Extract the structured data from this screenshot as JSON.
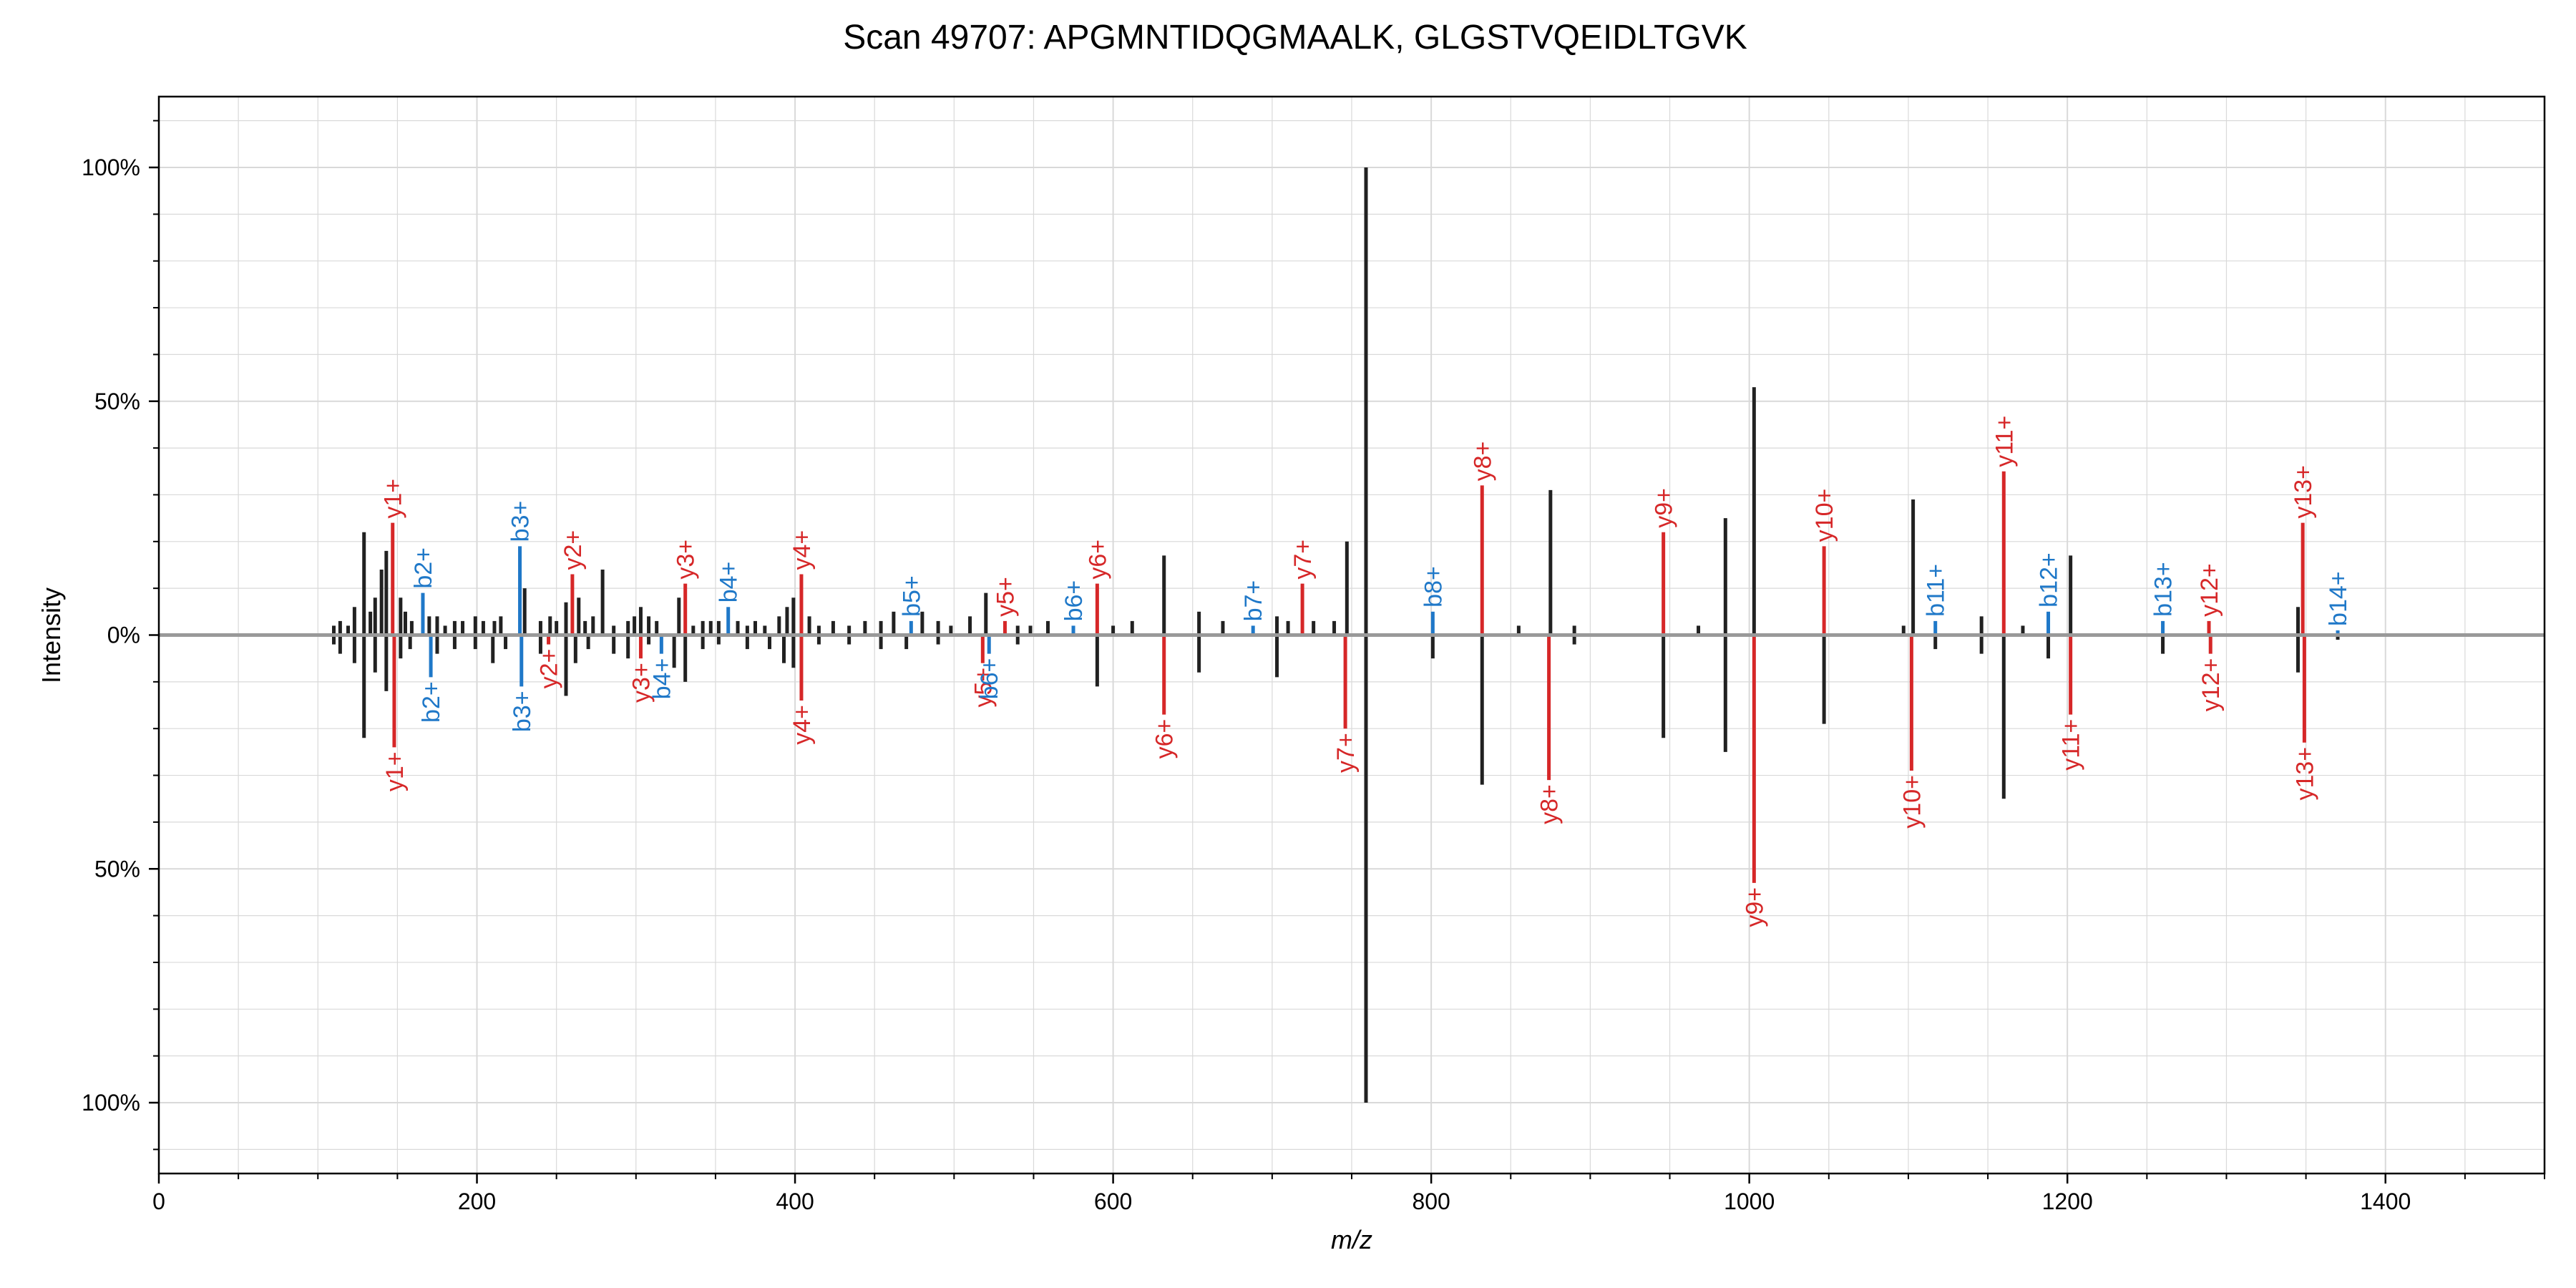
{
  "chart_data": {
    "type": "mirror-spectrum",
    "title": "Scan 49707: APGMNTIDQGMAALK, GLGSTVQEIDLTGVK",
    "xlabel": "m/z",
    "ylabel": "Intensity",
    "xlim": [
      0,
      1500
    ],
    "ylim": [
      -1.15,
      1.15
    ],
    "x_ticks": [
      0,
      200,
      400,
      600,
      800,
      1000,
      1200,
      1400
    ],
    "y_ticks": [
      {
        "value": 1.0,
        "label": "100%"
      },
      {
        "value": 0.5,
        "label": "50%"
      },
      {
        "value": 0.0,
        "label": "0%"
      },
      {
        "value": -0.5,
        "label": "50%"
      },
      {
        "value": -1.0,
        "label": "100%"
      }
    ],
    "grid": true,
    "colors": {
      "b_ion": "#1f78c8",
      "y_ion": "#d62728",
      "unannotated": "#212121",
      "baseline": "#999999",
      "grid": "#d9d9d9"
    },
    "top_peaks": [
      {
        "mz": 110,
        "i": 0.02
      },
      {
        "mz": 114,
        "i": 0.03
      },
      {
        "mz": 119,
        "i": 0.02
      },
      {
        "mz": 123,
        "i": 0.06
      },
      {
        "mz": 129,
        "i": 0.22
      },
      {
        "mz": 133,
        "i": 0.05
      },
      {
        "mz": 136,
        "i": 0.08
      },
      {
        "mz": 140,
        "i": 0.14
      },
      {
        "mz": 143,
        "i": 0.18
      },
      {
        "mz": 147,
        "i": 0.24,
        "ion": "y1+",
        "series": "y"
      },
      {
        "mz": 152,
        "i": 0.08
      },
      {
        "mz": 155,
        "i": 0.05
      },
      {
        "mz": 159,
        "i": 0.03
      },
      {
        "mz": 166,
        "i": 0.09,
        "ion": "b2+",
        "series": "b"
      },
      {
        "mz": 170,
        "i": 0.04
      },
      {
        "mz": 175,
        "i": 0.04
      },
      {
        "mz": 180,
        "i": 0.02
      },
      {
        "mz": 186,
        "i": 0.03
      },
      {
        "mz": 191,
        "i": 0.03
      },
      {
        "mz": 199,
        "i": 0.04
      },
      {
        "mz": 204,
        "i": 0.03
      },
      {
        "mz": 211,
        "i": 0.03
      },
      {
        "mz": 215,
        "i": 0.04
      },
      {
        "mz": 227,
        "i": 0.19,
        "ion": "b3+",
        "series": "b"
      },
      {
        "mz": 230,
        "i": 0.1
      },
      {
        "mz": 240,
        "i": 0.03
      },
      {
        "mz": 246,
        "i": 0.04
      },
      {
        "mz": 250,
        "i": 0.03
      },
      {
        "mz": 256,
        "i": 0.07
      },
      {
        "mz": 260,
        "i": 0.13,
        "ion": "y2+",
        "series": "y"
      },
      {
        "mz": 264,
        "i": 0.08
      },
      {
        "mz": 268,
        "i": 0.03
      },
      {
        "mz": 273,
        "i": 0.04
      },
      {
        "mz": 279,
        "i": 0.14
      },
      {
        "mz": 286,
        "i": 0.02
      },
      {
        "mz": 295,
        "i": 0.03
      },
      {
        "mz": 299,
        "i": 0.04
      },
      {
        "mz": 303,
        "i": 0.06
      },
      {
        "mz": 308,
        "i": 0.04
      },
      {
        "mz": 313,
        "i": 0.03
      },
      {
        "mz": 331,
        "i": 0.11,
        "ion": "y3+",
        "series": "y"
      },
      {
        "mz": 327,
        "i": 0.08
      },
      {
        "mz": 336,
        "i": 0.02
      },
      {
        "mz": 342,
        "i": 0.03
      },
      {
        "mz": 347,
        "i": 0.03
      },
      {
        "mz": 352,
        "i": 0.03
      },
      {
        "mz": 358,
        "i": 0.06,
        "ion": "b4+",
        "series": "b"
      },
      {
        "mz": 364,
        "i": 0.03
      },
      {
        "mz": 370,
        "i": 0.02
      },
      {
        "mz": 375,
        "i": 0.03
      },
      {
        "mz": 381,
        "i": 0.02
      },
      {
        "mz": 390,
        "i": 0.04
      },
      {
        "mz": 395,
        "i": 0.06
      },
      {
        "mz": 399,
        "i": 0.08
      },
      {
        "mz": 404,
        "i": 0.13,
        "ion": "y4+",
        "series": "y"
      },
      {
        "mz": 409,
        "i": 0.04
      },
      {
        "mz": 415,
        "i": 0.02
      },
      {
        "mz": 424,
        "i": 0.03
      },
      {
        "mz": 434,
        "i": 0.02
      },
      {
        "mz": 444,
        "i": 0.03
      },
      {
        "mz": 454,
        "i": 0.03
      },
      {
        "mz": 462,
        "i": 0.05
      },
      {
        "mz": 473,
        "i": 0.03,
        "ion": "b5+",
        "series": "b"
      },
      {
        "mz": 480,
        "i": 0.05
      },
      {
        "mz": 490,
        "i": 0.03
      },
      {
        "mz": 498,
        "i": 0.02
      },
      {
        "mz": 510,
        "i": 0.04
      },
      {
        "mz": 520,
        "i": 0.09
      },
      {
        "mz": 532,
        "i": 0.03,
        "ion": "y5+",
        "series": "y"
      },
      {
        "mz": 540,
        "i": 0.02
      },
      {
        "mz": 548,
        "i": 0.02
      },
      {
        "mz": 559,
        "i": 0.03
      },
      {
        "mz": 575,
        "i": 0.02,
        "ion": "b6+",
        "series": "b"
      },
      {
        "mz": 590,
        "i": 0.11,
        "ion": "y6+",
        "series": "y"
      },
      {
        "mz": 600,
        "i": 0.02
      },
      {
        "mz": 612,
        "i": 0.03
      },
      {
        "mz": 632,
        "i": 0.17
      },
      {
        "mz": 654,
        "i": 0.05
      },
      {
        "mz": 669,
        "i": 0.03
      },
      {
        "mz": 688,
        "i": 0.02,
        "ion": "b7+",
        "series": "b"
      },
      {
        "mz": 703,
        "i": 0.04
      },
      {
        "mz": 710,
        "i": 0.03
      },
      {
        "mz": 719,
        "i": 0.11,
        "ion": "y7+",
        "series": "y"
      },
      {
        "mz": 726,
        "i": 0.03
      },
      {
        "mz": 739,
        "i": 0.03
      },
      {
        "mz": 747,
        "i": 0.2
      },
      {
        "mz": 759,
        "i": 1.0
      },
      {
        "mz": 801,
        "i": 0.05,
        "ion": "b8+",
        "series": "b"
      },
      {
        "mz": 832,
        "i": 0.32,
        "ion": "y8+",
        "series": "y"
      },
      {
        "mz": 855,
        "i": 0.02
      },
      {
        "mz": 875,
        "i": 0.31
      },
      {
        "mz": 890,
        "i": 0.02
      },
      {
        "mz": 946,
        "i": 0.22,
        "ion": "y9+",
        "series": "y"
      },
      {
        "mz": 968,
        "i": 0.02
      },
      {
        "mz": 985,
        "i": 0.25
      },
      {
        "mz": 1003,
        "i": 0.53
      },
      {
        "mz": 1047,
        "i": 0.19,
        "ion": "y10+",
        "series": "y"
      },
      {
        "mz": 1097,
        "i": 0.02
      },
      {
        "mz": 1103,
        "i": 0.29
      },
      {
        "mz": 1117,
        "i": 0.03,
        "ion": "b11+",
        "series": "b"
      },
      {
        "mz": 1146,
        "i": 0.04
      },
      {
        "mz": 1160,
        "i": 0.35,
        "ion": "y11+",
        "series": "y"
      },
      {
        "mz": 1172,
        "i": 0.02
      },
      {
        "mz": 1188,
        "i": 0.05,
        "ion": "b12+",
        "series": "b"
      },
      {
        "mz": 1202,
        "i": 0.17
      },
      {
        "mz": 1260,
        "i": 0.03,
        "ion": "b13+",
        "series": "b"
      },
      {
        "mz": 1289,
        "i": 0.03,
        "ion": "y12+",
        "series": "y"
      },
      {
        "mz": 1345,
        "i": 0.06
      },
      {
        "mz": 1348,
        "i": 0.24,
        "ion": "y13+",
        "series": "y"
      },
      {
        "mz": 1370,
        "i": 0.01,
        "ion": "b14+",
        "series": "b"
      }
    ],
    "bottom_peaks": [
      {
        "mz": 110,
        "i": 0.02
      },
      {
        "mz": 114,
        "i": 0.04
      },
      {
        "mz": 123,
        "i": 0.06
      },
      {
        "mz": 129,
        "i": 0.22
      },
      {
        "mz": 136,
        "i": 0.08
      },
      {
        "mz": 143,
        "i": 0.12
      },
      {
        "mz": 148,
        "i": 0.24,
        "ion": "y1+",
        "series": "y"
      },
      {
        "mz": 152,
        "i": 0.05
      },
      {
        "mz": 158,
        "i": 0.03
      },
      {
        "mz": 171,
        "i": 0.09,
        "ion": "b2+",
        "series": "b"
      },
      {
        "mz": 175,
        "i": 0.04
      },
      {
        "mz": 186,
        "i": 0.03
      },
      {
        "mz": 199,
        "i": 0.03
      },
      {
        "mz": 210,
        "i": 0.06
      },
      {
        "mz": 218,
        "i": 0.03
      },
      {
        "mz": 228,
        "i": 0.11,
        "ion": "b3+",
        "series": "b"
      },
      {
        "mz": 240,
        "i": 0.04
      },
      {
        "mz": 245,
        "i": 0.02,
        "ion": "y2+",
        "series": "y"
      },
      {
        "mz": 256,
        "i": 0.13
      },
      {
        "mz": 262,
        "i": 0.06
      },
      {
        "mz": 270,
        "i": 0.03
      },
      {
        "mz": 286,
        "i": 0.04
      },
      {
        "mz": 295,
        "i": 0.05
      },
      {
        "mz": 303,
        "i": 0.05,
        "ion": "y3+",
        "series": "y"
      },
      {
        "mz": 308,
        "i": 0.02
      },
      {
        "mz": 316,
        "i": 0.04,
        "ion": "b4+",
        "series": "b"
      },
      {
        "mz": 324,
        "i": 0.07
      },
      {
        "mz": 331,
        "i": 0.1
      },
      {
        "mz": 342,
        "i": 0.03
      },
      {
        "mz": 352,
        "i": 0.02
      },
      {
        "mz": 370,
        "i": 0.03
      },
      {
        "mz": 384,
        "i": 0.03
      },
      {
        "mz": 393,
        "i": 0.06
      },
      {
        "mz": 399,
        "i": 0.07
      },
      {
        "mz": 404,
        "i": 0.14,
        "ion": "y4+",
        "series": "y"
      },
      {
        "mz": 415,
        "i": 0.02
      },
      {
        "mz": 434,
        "i": 0.02
      },
      {
        "mz": 454,
        "i": 0.03
      },
      {
        "mz": 470,
        "i": 0.03
      },
      {
        "mz": 490,
        "i": 0.02
      },
      {
        "mz": 518,
        "i": 0.06,
        "ion": "y5+",
        "series": "y"
      },
      {
        "mz": 522,
        "i": 0.04,
        "ion": "b6+",
        "series": "b"
      },
      {
        "mz": 540,
        "i": 0.02
      },
      {
        "mz": 590,
        "i": 0.11
      },
      {
        "mz": 632,
        "i": 0.17,
        "ion": "y6+",
        "series": "y"
      },
      {
        "mz": 654,
        "i": 0.08
      },
      {
        "mz": 703,
        "i": 0.09
      },
      {
        "mz": 746,
        "i": 0.2,
        "ion": "y7+",
        "series": "y"
      },
      {
        "mz": 759,
        "i": 1.0
      },
      {
        "mz": 801,
        "i": 0.05
      },
      {
        "mz": 832,
        "i": 0.32
      },
      {
        "mz": 874,
        "i": 0.31,
        "ion": "y8+",
        "series": "y"
      },
      {
        "mz": 890,
        "i": 0.02
      },
      {
        "mz": 946,
        "i": 0.22
      },
      {
        "mz": 985,
        "i": 0.25
      },
      {
        "mz": 1003,
        "i": 0.53,
        "ion": "y9+",
        "series": "y"
      },
      {
        "mz": 1047,
        "i": 0.19
      },
      {
        "mz": 1102,
        "i": 0.29,
        "ion": "y10+",
        "series": "y"
      },
      {
        "mz": 1117,
        "i": 0.03
      },
      {
        "mz": 1146,
        "i": 0.04
      },
      {
        "mz": 1160,
        "i": 0.35
      },
      {
        "mz": 1188,
        "i": 0.05
      },
      {
        "mz": 1202,
        "i": 0.17,
        "ion": "y11+",
        "series": "y"
      },
      {
        "mz": 1260,
        "i": 0.04
      },
      {
        "mz": 1290,
        "i": 0.04,
        "ion": "y12+",
        "series": "y"
      },
      {
        "mz": 1345,
        "i": 0.08
      },
      {
        "mz": 1349,
        "i": 0.23,
        "ion": "y13+",
        "series": "y"
      },
      {
        "mz": 1370,
        "i": 0.01
      }
    ]
  }
}
